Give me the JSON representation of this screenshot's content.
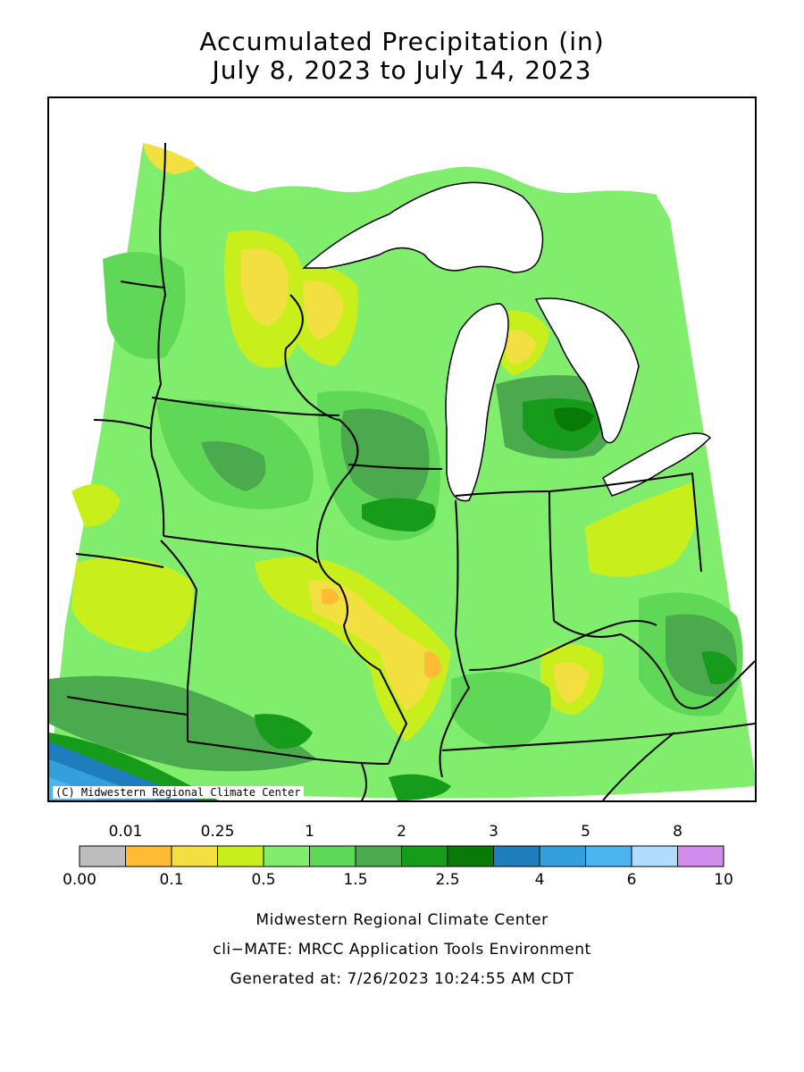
{
  "title": "Accumulated Precipitation (in)",
  "subtitle": "July 8, 2023 to July 14, 2023",
  "credit": "(C) Midwestern Regional Climate Center",
  "legend": {
    "upper_labels": [
      "0.01",
      "0.25",
      "1",
      "2",
      "3",
      "5",
      "8"
    ],
    "lower_labels": [
      "0.00",
      "0.1",
      "0.5",
      "1.5",
      "2.5",
      "4",
      "6",
      "10"
    ],
    "bins": [
      {
        "color": "#bdbdbd"
      },
      {
        "color": "#ffbb33"
      },
      {
        "color": "#f2e040"
      },
      {
        "color": "#c8ef1c"
      },
      {
        "color": "#80ee6c"
      },
      {
        "color": "#60d857"
      },
      {
        "color": "#4aaa4d"
      },
      {
        "color": "#179b1a"
      },
      {
        "color": "#077a07"
      },
      {
        "color": "#1e7dbd"
      },
      {
        "color": "#33a0dd"
      },
      {
        "color": "#4ab5f0"
      },
      {
        "color": "#b0dcff"
      },
      {
        "color": "#d18cec"
      }
    ]
  },
  "footer": {
    "line1": "Midwestern Regional Climate Center",
    "line2": "cli−MATE: MRCC Application Tools Environment",
    "line3": "Generated at: 7/26/2023 10:24:55 AM CDT"
  }
}
